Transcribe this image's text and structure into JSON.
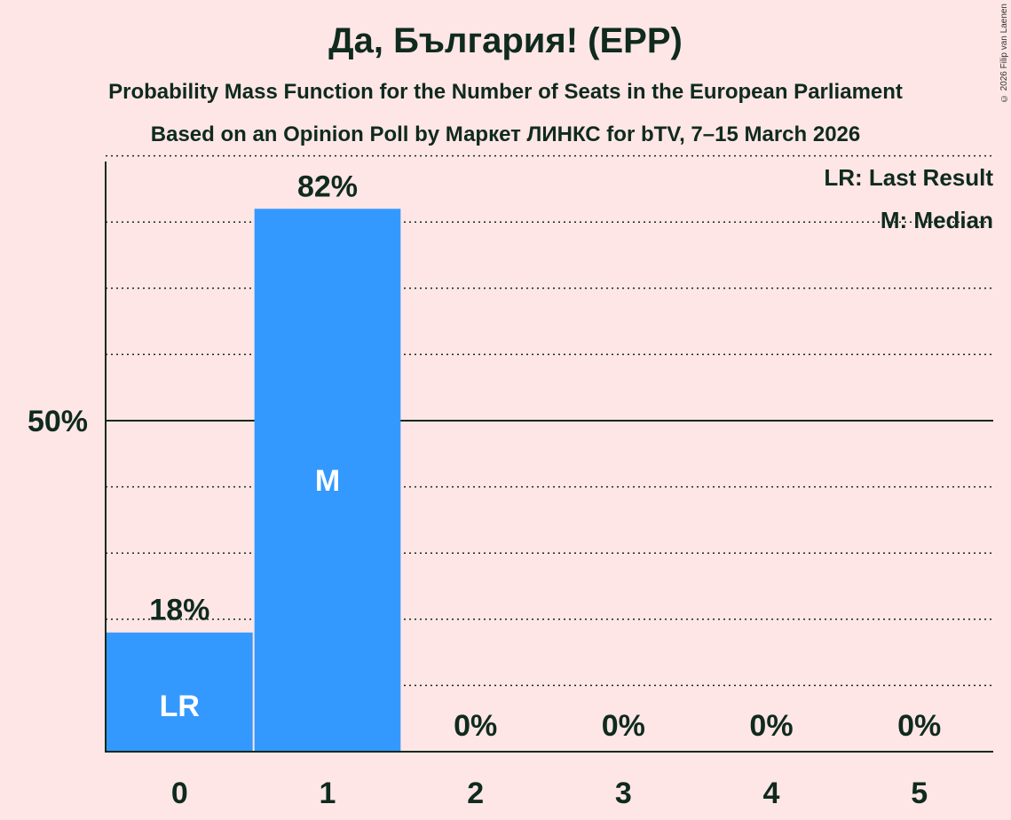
{
  "title": "Да, България! (EPP)",
  "subtitle1": "Probability Mass Function for the Number of Seats in the European Parliament",
  "subtitle2": "Based on an Opinion Poll by Маркет ЛИНКС for bTV, 7–15 March 2026",
  "copyright": "© 2026 Filip van Laenen",
  "colors": {
    "bar": "#3399FF",
    "background": "#FFE6E6",
    "text": "#0F2A1E"
  },
  "chart_data": {
    "type": "bar",
    "categories": [
      "0",
      "1",
      "2",
      "3",
      "4",
      "5"
    ],
    "values": [
      18,
      82,
      0,
      0,
      0,
      0
    ],
    "value_labels": [
      "18%",
      "82%",
      "0%",
      "0%",
      "0%",
      "0%"
    ],
    "bar_markers": [
      "LR",
      "M",
      "",
      "",
      "",
      ""
    ],
    "ylim": [
      0,
      100
    ],
    "yticks": [
      {
        "value": 50,
        "label": "50%"
      }
    ],
    "grid_minor_step": 10,
    "legend": {
      "placement": "top-right",
      "entries": [
        "LR: Last Result",
        "M: Median"
      ]
    }
  }
}
